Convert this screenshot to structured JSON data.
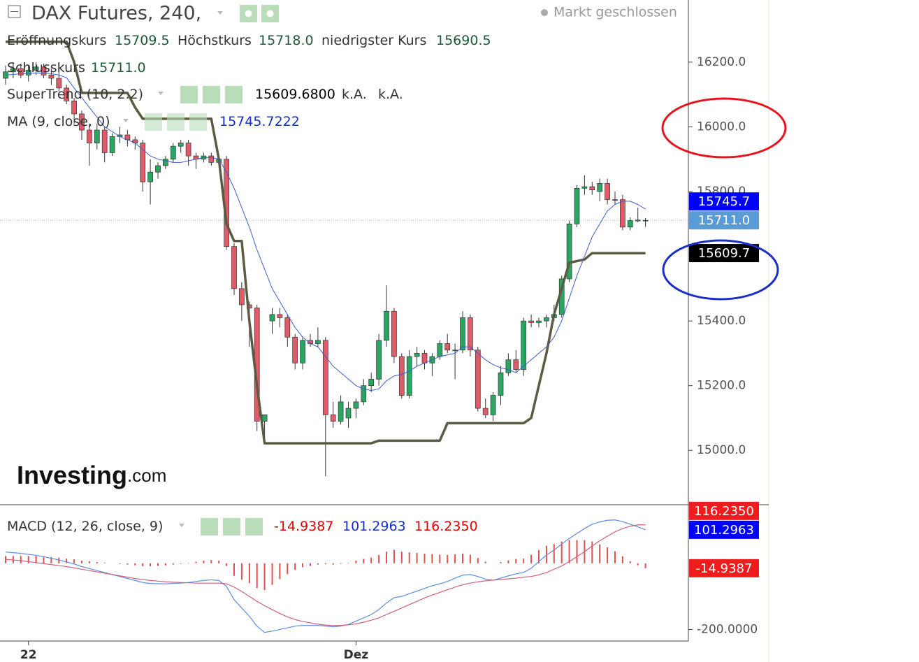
{
  "header": {
    "title": "DAX Futures, 240,",
    "status": "Markt geschlossen",
    "ohlc": [
      {
        "label": "Eröffnungskurs",
        "value": "15709.5"
      },
      {
        "label": "Höchstkurs",
        "value": "15718.0"
      },
      {
        "label": "niedrigster Kurs",
        "value": "15690.5"
      },
      {
        "label": "Schlusskurs",
        "value": "15711.0"
      }
    ]
  },
  "logo": {
    "name": "Investing",
    "suffix": ".com"
  },
  "chart_data": [
    {
      "type": "candlestick",
      "up_color": "#2aa663",
      "down_color": "#e05a68",
      "categories": [
        null,
        null,
        null,
        "22",
        null,
        null,
        null,
        null,
        null,
        null,
        null,
        null,
        null,
        null,
        null,
        null,
        null,
        null,
        null,
        null,
        null,
        null,
        null,
        null,
        null,
        null,
        null,
        null,
        null,
        null,
        null,
        null,
        null,
        null,
        null,
        null,
        null,
        null,
        null,
        null,
        null,
        null,
        null,
        null,
        null,
        null,
        "Dez",
        null,
        null,
        null,
        null,
        null,
        null,
        null,
        null,
        null,
        null,
        null,
        null,
        null,
        null,
        null,
        null,
        null,
        null,
        null,
        null,
        null,
        null,
        null,
        null,
        null,
        null,
        null,
        null,
        null,
        null,
        null,
        null,
        null,
        null,
        null,
        null,
        null,
        null
      ],
      "open": [
        16150,
        16170,
        16180,
        16160,
        16175,
        16185,
        16160,
        16150,
        16120,
        16080,
        16040,
        15990,
        15950,
        15990,
        15920,
        15970,
        15975,
        15960,
        15950,
        15830,
        15860,
        15880,
        15900,
        15940,
        15950,
        15910,
        15900,
        15910,
        15890,
        15900,
        15630,
        15500,
        15450,
        15440,
        15090,
        15400,
        15420,
        15410,
        15350,
        15270,
        15340,
        15330,
        15340,
        15110,
        15090,
        15100,
        15130,
        15150,
        15200,
        15220,
        15340,
        15430,
        15290,
        15170,
        15290,
        15300,
        15270,
        15290,
        15330,
        15310,
        15310,
        15410,
        15310,
        15130,
        15110,
        15170,
        15240,
        15280,
        15250,
        15400,
        15395,
        15400,
        15410,
        15420,
        15530,
        15700,
        15810,
        15815,
        15800,
        15825,
        15775,
        15775,
        15690,
        15712,
        15709.5
      ],
      "high": [
        16190,
        16200,
        16195,
        16190,
        16200,
        16195,
        16180,
        16170,
        16130,
        16090,
        16050,
        16010,
        16010,
        16000,
        15980,
        16000,
        15990,
        15970,
        15960,
        15900,
        15890,
        15910,
        15950,
        15960,
        15960,
        15920,
        15920,
        15920,
        15900,
        15910,
        15640,
        15520,
        15460,
        15450,
        15110,
        15440,
        15440,
        15420,
        15360,
        15350,
        15360,
        15380,
        15350,
        15150,
        15170,
        15150,
        15160,
        15220,
        15240,
        15360,
        15510,
        15440,
        15300,
        15310,
        15320,
        15310,
        15300,
        15340,
        15360,
        15330,
        15430,
        15420,
        15320,
        15160,
        15180,
        15260,
        15300,
        15310,
        15410,
        15420,
        15410,
        15420,
        15450,
        15540,
        15710,
        15820,
        15850,
        15830,
        15840,
        15840,
        15800,
        15790,
        15720,
        15750,
        15718
      ],
      "low": [
        16130,
        16150,
        16150,
        16140,
        16160,
        16150,
        16130,
        16110,
        16070,
        16010,
        15960,
        15880,
        15930,
        15890,
        15910,
        15950,
        15940,
        15930,
        15800,
        15760,
        15840,
        15870,
        15890,
        15920,
        15880,
        15870,
        15890,
        15880,
        15880,
        15620,
        15480,
        15400,
        15320,
        15060,
        15030,
        15360,
        15380,
        15320,
        15250,
        15250,
        15320,
        15320,
        14920,
        15070,
        15080,
        15070,
        15100,
        15140,
        15180,
        15200,
        15320,
        15270,
        15160,
        15160,
        15260,
        15250,
        15230,
        15280,
        15300,
        15220,
        15300,
        15290,
        15120,
        15100,
        15090,
        15140,
        15230,
        15240,
        15230,
        15380,
        15380,
        15380,
        15400,
        15410,
        15520,
        15690,
        15790,
        15790,
        15770,
        15760,
        15760,
        15680,
        15680,
        15705,
        15690.5
      ],
      "close": [
        16170,
        16180,
        16160,
        16175,
        16185,
        16160,
        16150,
        16120,
        16080,
        16040,
        15990,
        15950,
        15990,
        15920,
        15970,
        15975,
        15960,
        15950,
        15830,
        15860,
        15880,
        15900,
        15940,
        15950,
        15910,
        15900,
        15910,
        15890,
        15900,
        15630,
        15500,
        15450,
        15440,
        15090,
        15110,
        15420,
        15410,
        15350,
        15270,
        15340,
        15330,
        15340,
        15110,
        15090,
        15150,
        15130,
        15150,
        15200,
        15220,
        15340,
        15430,
        15290,
        15170,
        15290,
        15300,
        15270,
        15290,
        15330,
        15310,
        15310,
        15410,
        15310,
        15130,
        15110,
        15170,
        15240,
        15280,
        15250,
        15400,
        15395,
        15400,
        15410,
        15420,
        15530,
        15700,
        15810,
        15815,
        15805,
        15825,
        15775,
        15775,
        15690,
        15710,
        15709,
        15711
      ],
      "series": [
        {
          "name": "SuperTrend (10, 2.2)",
          "color": "#5b5b43",
          "legend_values": [
            "15609.6800",
            "k.A.",
            "k.A."
          ],
          "values": [
            16263,
            16263,
            16263,
            16263,
            16263,
            16263,
            16263,
            16263,
            16263,
            16200,
            16105,
            16105,
            16105,
            16105,
            16105,
            16105,
            16105,
            16060,
            16025,
            16025,
            16025,
            16025,
            16025,
            16025,
            16025,
            16025,
            16025,
            16025,
            15900,
            15700,
            15647,
            15647,
            15400,
            15200,
            15022,
            15022,
            15022,
            15022,
            15022,
            15022,
            15022,
            15022,
            15022,
            15022,
            15022,
            15022,
            15022,
            15022,
            15022,
            15030,
            15030,
            15030,
            15030,
            15030,
            15030,
            15030,
            15030,
            15030,
            15084,
            15084,
            15084,
            15084,
            15084,
            15084,
            15084,
            15084,
            15084,
            15084,
            15084,
            15100,
            15200,
            15300,
            15420,
            15500,
            15580,
            15585,
            15590,
            15609.68,
            15609.68,
            15609.68,
            15609.68,
            15609.68,
            15609.68,
            15609.68,
            15609.68
          ]
        },
        {
          "name": "MA (9, close, 0)",
          "color": "#3a5fcd",
          "legend_values": [
            "15745.7222"
          ],
          "values": [
            16160,
            16162,
            16164,
            16165,
            16166,
            16166,
            16164,
            16160,
            16152,
            16120,
            16090,
            16060,
            16030,
            16000,
            15985,
            15970,
            15960,
            15950,
            15930,
            15910,
            15900,
            15895,
            15890,
            15890,
            15895,
            15900,
            15905,
            15905,
            15900,
            15860,
            15810,
            15750,
            15690,
            15620,
            15560,
            15500,
            15460,
            15420,
            15380,
            15350,
            15330,
            15320,
            15290,
            15260,
            15240,
            15220,
            15200,
            15190,
            15185,
            15190,
            15215,
            15230,
            15235,
            15245,
            15260,
            15270,
            15280,
            15290,
            15295,
            15300,
            15320,
            15320,
            15300,
            15280,
            15265,
            15255,
            15250,
            15240,
            15260,
            15280,
            15300,
            15320,
            15350,
            15400,
            15470,
            15540,
            15600,
            15660,
            15700,
            15740,
            15760,
            15770,
            15770,
            15760,
            15745.72
          ]
        }
      ],
      "ylim": [
        14832,
        16392
      ],
      "yticks": [
        {
          "value": 15000,
          "label": "15000.0"
        },
        {
          "value": 15200,
          "label": "15200.0"
        },
        {
          "value": 15400,
          "label": "15400.0"
        },
        {
          "value": 15800,
          "label": "15800.0"
        },
        {
          "value": 16000,
          "label": "16000.0"
        },
        {
          "value": 16200,
          "label": "16200.0"
        }
      ],
      "price_tags": [
        {
          "value": 15745.7,
          "label": "15745.7",
          "color": "#0000ff"
        },
        {
          "value": 15711.0,
          "label": "15711.0",
          "color": "#5b9bd5"
        },
        {
          "value": 15609.7,
          "label": "15609.7",
          "color": "#000000"
        }
      ]
    },
    {
      "type": "macd",
      "title": "MACD (12, 26, close, 9)",
      "legend_values": [
        "-14.9387",
        "101.2963",
        "116.2350"
      ],
      "histogram": {
        "color": "#e05050",
        "values": [
          22,
          22,
          22,
          22,
          22,
          21,
          19,
          17,
          14,
          12,
          8,
          6,
          4,
          2,
          0,
          -2,
          -4,
          -6,
          -9,
          -9,
          -8,
          -6,
          -4,
          -2,
          1,
          5,
          8,
          10,
          8,
          -8,
          -38,
          -50,
          -60,
          -75,
          -81,
          -65,
          -48,
          -33,
          -20,
          -12,
          -8,
          -4,
          -3,
          -4,
          -2,
          1,
          8,
          13,
          17,
          25,
          35,
          41,
          35,
          33,
          31,
          29,
          28,
          26,
          25,
          27,
          29,
          26,
          16,
          5,
          0,
          4,
          9,
          13,
          14,
          25,
          40,
          53,
          58,
          66,
          70,
          70,
          70,
          66,
          57,
          48,
          36,
          21,
          6,
          -6,
          -14.9387
        ]
      },
      "series": [
        {
          "color": "#5b8fd8",
          "values": [
            34,
            32,
            30,
            27,
            24,
            20,
            15,
            10,
            4,
            -2,
            -10,
            -16,
            -22,
            -28,
            -34,
            -40,
            -46,
            -52,
            -58,
            -61,
            -62,
            -62,
            -61,
            -60,
            -58,
            -55,
            -52,
            -50,
            -52,
            -70,
            -110,
            -135,
            -160,
            -190,
            -209,
            -205,
            -200,
            -195,
            -190,
            -188,
            -188,
            -188,
            -190,
            -192,
            -190,
            -185,
            -175,
            -165,
            -155,
            -140,
            -120,
            -104,
            -100,
            -92,
            -84,
            -76,
            -68,
            -62,
            -55,
            -45,
            -36,
            -34,
            -40,
            -48,
            -51,
            -45,
            -38,
            -32,
            -28,
            -15,
            5,
            25,
            40,
            58,
            75,
            90,
            105,
            118,
            125,
            130,
            131,
            126,
            118,
            110,
            101.2963
          ]
        },
        {
          "color": "#d0607a",
          "values": [
            12,
            10,
            8,
            5,
            2,
            -1,
            -4,
            -7,
            -10,
            -14,
            -18,
            -22,
            -26,
            -30,
            -34,
            -38,
            -42,
            -46,
            -49,
            -52,
            -54,
            -56,
            -57,
            -58,
            -59,
            -60,
            -60,
            -60,
            -60,
            -62,
            -72,
            -85,
            -100,
            -115,
            -128,
            -140,
            -152,
            -162,
            -170,
            -176,
            -180,
            -184,
            -187,
            -188,
            -188,
            -186,
            -183,
            -178,
            -172,
            -165,
            -155,
            -145,
            -135,
            -125,
            -115,
            -105,
            -96,
            -88,
            -80,
            -72,
            -65,
            -60,
            -56,
            -53,
            -51,
            -49,
            -47,
            -45,
            -42,
            -40,
            -35,
            -28,
            -18,
            -8,
            5,
            20,
            35,
            52,
            68,
            82,
            95,
            105,
            112,
            116,
            116.235
          ]
        }
      ],
      "ylim": [
        -235,
        177
      ],
      "yticks": [
        {
          "value": -200,
          "label": "-200.0000"
        }
      ],
      "price_tags": [
        {
          "value": 116.235,
          "label": "116.2350",
          "color": "#ee1c1c"
        },
        {
          "value": 101.2963,
          "label": "101.2963",
          "color": "#0000ff"
        },
        {
          "value": -14.9387,
          "label": "-14.9387",
          "color": "#ee1c1c"
        }
      ]
    }
  ]
}
